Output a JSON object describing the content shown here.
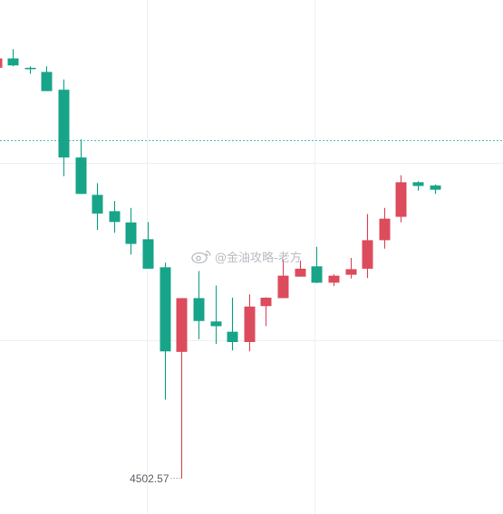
{
  "chart_data": {
    "type": "candlestick",
    "title": "",
    "xlabel": "",
    "ylabel": "",
    "grid": true,
    "ylim": [
      4495,
      4605
    ],
    "reference_price": 4575,
    "colors": {
      "up": "#dc4c5c",
      "down": "#17a489",
      "reference_line": "#4fc3b6",
      "grid": "#eef0f3",
      "annotation": "#5a5f66"
    },
    "candles": [
      {
        "open": 4590.5,
        "close": 4592.5,
        "high": 4593.5,
        "low": 4590.5,
        "direction": "up"
      },
      {
        "open": 4592.5,
        "close": 4591.0,
        "high": 4594.5,
        "low": 4590.8,
        "direction": "down"
      },
      {
        "open": 4590.5,
        "close": 4590.2,
        "high": 4590.8,
        "low": 4589.2,
        "direction": "down"
      },
      {
        "open": 4589.6,
        "close": 4585.5,
        "high": 4590.8,
        "low": 4585.5,
        "direction": "down"
      },
      {
        "open": 4585.8,
        "close": 4571.3,
        "high": 4588.0,
        "low": 4567.3,
        "direction": "down"
      },
      {
        "open": 4571.3,
        "close": 4563.5,
        "high": 4575.2,
        "low": 4563.5,
        "direction": "down"
      },
      {
        "open": 4563.3,
        "close": 4559.3,
        "high": 4565.8,
        "low": 4555.8,
        "direction": "down"
      },
      {
        "open": 4559.8,
        "close": 4557.5,
        "high": 4562.0,
        "low": 4555.2,
        "direction": "down"
      },
      {
        "open": 4557.4,
        "close": 4552.8,
        "high": 4560.5,
        "low": 4550.5,
        "direction": "down"
      },
      {
        "open": 4553.8,
        "close": 4547.5,
        "high": 4557.5,
        "low": 4547.5,
        "direction": "down"
      },
      {
        "open": 4547.8,
        "close": 4529.8,
        "high": 4548.8,
        "low": 4519.5,
        "direction": "down"
      },
      {
        "open": 4529.7,
        "close": 4541.2,
        "high": 4541.2,
        "low": 4502.57,
        "direction": "up"
      },
      {
        "open": 4541.2,
        "close": 4536.3,
        "high": 4547.0,
        "low": 4532.4,
        "direction": "down"
      },
      {
        "open": 4536.2,
        "close": 4535.2,
        "high": 4543.9,
        "low": 4531.4,
        "direction": "down"
      },
      {
        "open": 4534.0,
        "close": 4531.8,
        "high": 4541.3,
        "low": 4530.0,
        "direction": "down"
      },
      {
        "open": 4531.8,
        "close": 4539.4,
        "high": 4542.0,
        "low": 4529.8,
        "direction": "up"
      },
      {
        "open": 4539.5,
        "close": 4541.3,
        "high": 4541.4,
        "low": 4535.2,
        "direction": "up"
      },
      {
        "open": 4541.2,
        "close": 4546.0,
        "high": 4549.4,
        "low": 4541.2,
        "direction": "up"
      },
      {
        "open": 4545.8,
        "close": 4547.5,
        "high": 4549.2,
        "low": 4545.8,
        "direction": "up"
      },
      {
        "open": 4548.0,
        "close": 4544.5,
        "high": 4552.2,
        "low": 4544.4,
        "direction": "down"
      },
      {
        "open": 4544.5,
        "close": 4546.0,
        "high": 4546.3,
        "low": 4543.8,
        "direction": "up"
      },
      {
        "open": 4546.2,
        "close": 4547.4,
        "high": 4549.8,
        "low": 4545.4,
        "direction": "up"
      },
      {
        "open": 4547.5,
        "close": 4553.6,
        "high": 4559.2,
        "low": 4545.5,
        "direction": "up"
      },
      {
        "open": 4553.6,
        "close": 4558.2,
        "high": 4560.5,
        "low": 4551.8,
        "direction": "up"
      },
      {
        "open": 4558.6,
        "close": 4566.0,
        "high": 4567.5,
        "low": 4557.4,
        "direction": "up"
      },
      {
        "open": 4566.0,
        "close": 4565.2,
        "high": 4566.2,
        "low": 4564.2,
        "direction": "down"
      },
      {
        "open": 4565.3,
        "close": 4564.4,
        "high": 4565.5,
        "low": 4563.5,
        "direction": "down"
      }
    ],
    "annotations": [
      {
        "text": "4502.57",
        "candle_index": 11,
        "value": 4502.57
      }
    ]
  },
  "watermark": {
    "icon": "weibo-icon",
    "text": "@金油攻略-老方"
  }
}
